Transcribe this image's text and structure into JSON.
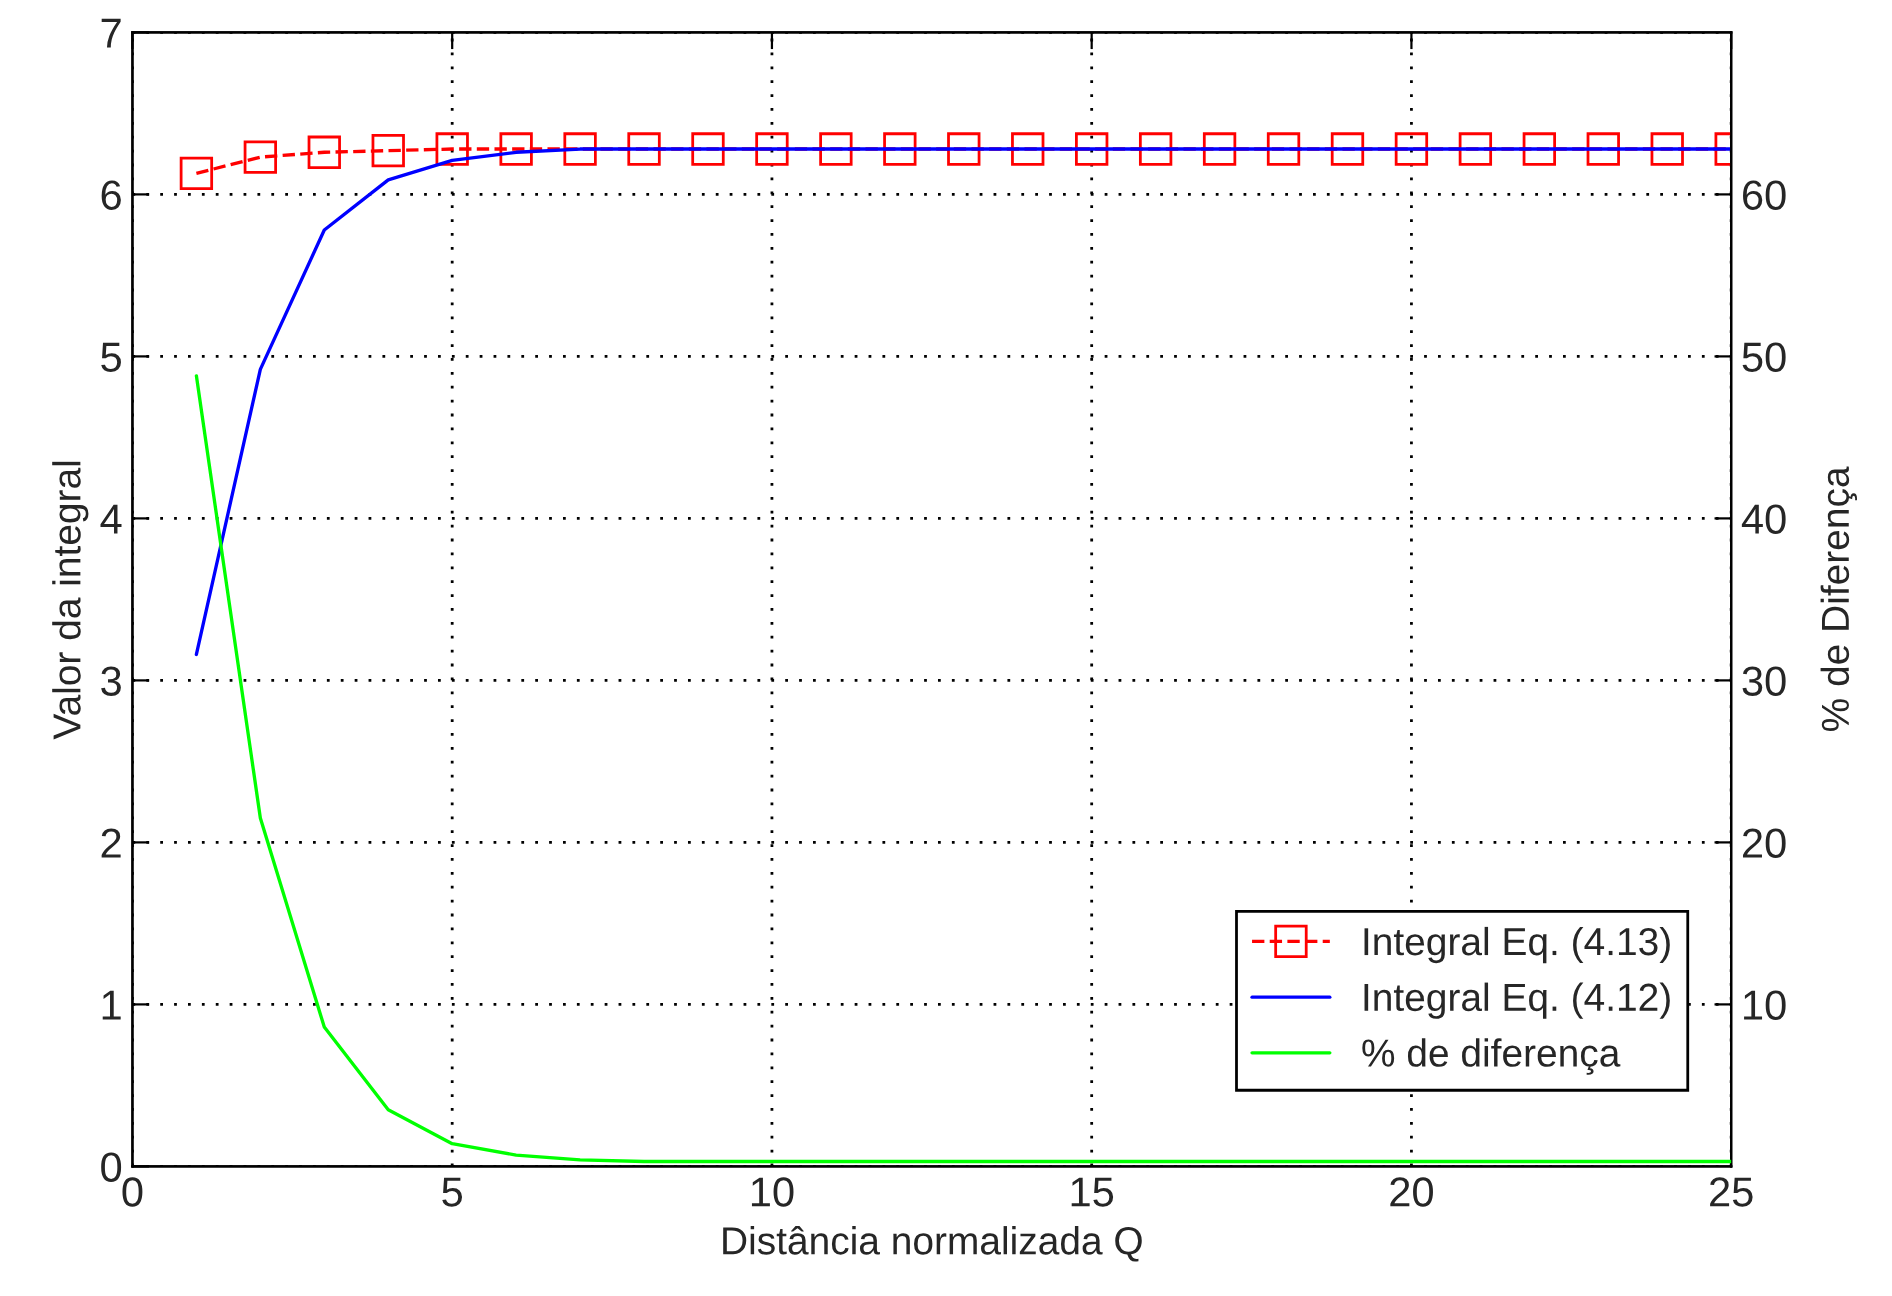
{
  "chart_data": {
    "type": "line",
    "xlabel": "Distância normalizada Q",
    "ylabel": "Valor da integral",
    "y2label": "% de Diferença",
    "x": [
      1,
      2,
      3,
      4,
      5,
      6,
      7,
      8,
      9,
      10,
      11,
      12,
      13,
      14,
      15,
      16,
      17,
      18,
      19,
      20,
      21,
      22,
      23,
      24,
      25
    ],
    "series": [
      {
        "name": "Integral Eq. (4.13)",
        "color": "#ff0000",
        "marker": "square",
        "line_style": "dashed",
        "values": [
          6.13,
          6.23,
          6.26,
          6.27,
          6.28,
          6.28,
          6.28,
          6.28,
          6.28,
          6.28,
          6.28,
          6.28,
          6.28,
          6.28,
          6.28,
          6.28,
          6.28,
          6.28,
          6.28,
          6.28,
          6.28,
          6.28,
          6.28,
          6.28,
          6.28
        ]
      },
      {
        "name": "Integral Eq. (4.12)",
        "color": "#0000ff",
        "marker": "none",
        "line_style": "solid",
        "values": [
          3.16,
          4.92,
          5.78,
          6.09,
          6.21,
          6.26,
          6.28,
          6.28,
          6.28,
          6.28,
          6.28,
          6.28,
          6.28,
          6.28,
          6.28,
          6.28,
          6.28,
          6.28,
          6.28,
          6.28,
          6.28,
          6.28,
          6.28,
          6.28,
          6.28
        ]
      },
      {
        "name": "% de diferença",
        "color": "#00ff00",
        "marker": "none",
        "line_style": "solid",
        "axis": "y2",
        "values": [
          48.8,
          21.5,
          8.6,
          3.5,
          1.4,
          0.7,
          0.4,
          0.3,
          0.3,
          0.3,
          0.3,
          0.3,
          0.3,
          0.3,
          0.3,
          0.3,
          0.3,
          0.3,
          0.3,
          0.3,
          0.3,
          0.3,
          0.3,
          0.3,
          0.3
        ]
      }
    ],
    "xlim": [
      0,
      25
    ],
    "xticks": [
      0,
      5,
      10,
      15,
      20,
      25
    ],
    "ylim": [
      0,
      7
    ],
    "yticks": [
      0,
      1,
      2,
      3,
      4,
      5,
      6,
      7
    ],
    "y2lim": [
      0,
      70
    ],
    "y2ticks": [
      10,
      20,
      30,
      40,
      50,
      60
    ],
    "grid": true,
    "legend": "bottom right"
  }
}
